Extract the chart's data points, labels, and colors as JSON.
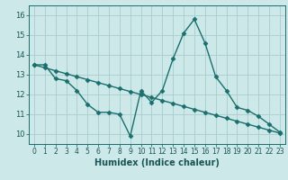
{
  "xlabel": "Humidex (Indice chaleur)",
  "ylabel": "",
  "bg_color": "#cce8e8",
  "grid_color": "#aacccc",
  "line_color": "#1a6e6e",
  "xlim": [
    -0.5,
    23.5
  ],
  "ylim": [
    9.5,
    16.5
  ],
  "xticks": [
    0,
    1,
    2,
    3,
    4,
    5,
    6,
    7,
    8,
    9,
    10,
    11,
    12,
    13,
    14,
    15,
    16,
    17,
    18,
    19,
    20,
    21,
    22,
    23
  ],
  "yticks": [
    10,
    11,
    12,
    13,
    14,
    15,
    16
  ],
  "line1_x": [
    0,
    1,
    2,
    3,
    4,
    5,
    6,
    7,
    8,
    9,
    10,
    11,
    12,
    13,
    14,
    15,
    16,
    17,
    18,
    19,
    20,
    21,
    22,
    23
  ],
  "line1_y": [
    13.5,
    13.5,
    12.8,
    12.7,
    12.2,
    11.5,
    11.1,
    11.1,
    11.0,
    9.9,
    12.2,
    11.6,
    12.2,
    13.8,
    15.1,
    15.8,
    14.6,
    12.9,
    12.2,
    11.35,
    11.2,
    10.9,
    10.5,
    10.1
  ],
  "line2_x": [
    0,
    1,
    2,
    3,
    4,
    5,
    6,
    7,
    8,
    9,
    10,
    11,
    12,
    13,
    14,
    15,
    16,
    17,
    18,
    19,
    20,
    21,
    22,
    23
  ],
  "line2_y": [
    13.5,
    13.35,
    13.2,
    13.05,
    12.9,
    12.75,
    12.6,
    12.45,
    12.3,
    12.15,
    12.0,
    11.85,
    11.7,
    11.55,
    11.4,
    11.25,
    11.1,
    10.95,
    10.8,
    10.65,
    10.5,
    10.35,
    10.2,
    10.05
  ]
}
